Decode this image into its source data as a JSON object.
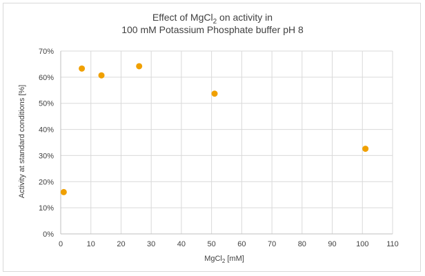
{
  "chart_data": {
    "type": "scatter",
    "title": {
      "line1_prefix": "Effect of MgCl",
      "line1_sub": "2",
      "line1_suffix": " on activity in",
      "line2": "100 mM Potassium Phosphate buffer pH 8"
    },
    "xlabel": {
      "prefix": "MgCl",
      "sub": "2",
      "suffix": " [mM]"
    },
    "ylabel": "Activity at standard conditions [%]",
    "xlim": [
      0,
      110
    ],
    "ylim": [
      0,
      70
    ],
    "x_ticks": [
      0,
      10,
      20,
      30,
      40,
      50,
      60,
      70,
      80,
      90,
      100,
      110
    ],
    "x_tick_labels": [
      "0",
      "10",
      "20",
      "30",
      "40",
      "50",
      "60",
      "70",
      "80",
      "90",
      "100",
      "110"
    ],
    "y_ticks": [
      0,
      10,
      20,
      30,
      40,
      50,
      60,
      70
    ],
    "y_tick_labels": [
      "0%",
      "10%",
      "20%",
      "30%",
      "40%",
      "50%",
      "60%",
      "70%"
    ],
    "grid": true,
    "legend": "none",
    "marker_color": "#f0a000",
    "series": [
      {
        "points": [
          {
            "x": 1,
            "y": 16
          },
          {
            "x": 7,
            "y": 63.3
          },
          {
            "x": 13.5,
            "y": 60.7
          },
          {
            "x": 26,
            "y": 64.2
          },
          {
            "x": 51,
            "y": 53.7
          },
          {
            "x": 101,
            "y": 32.6
          }
        ]
      }
    ]
  }
}
